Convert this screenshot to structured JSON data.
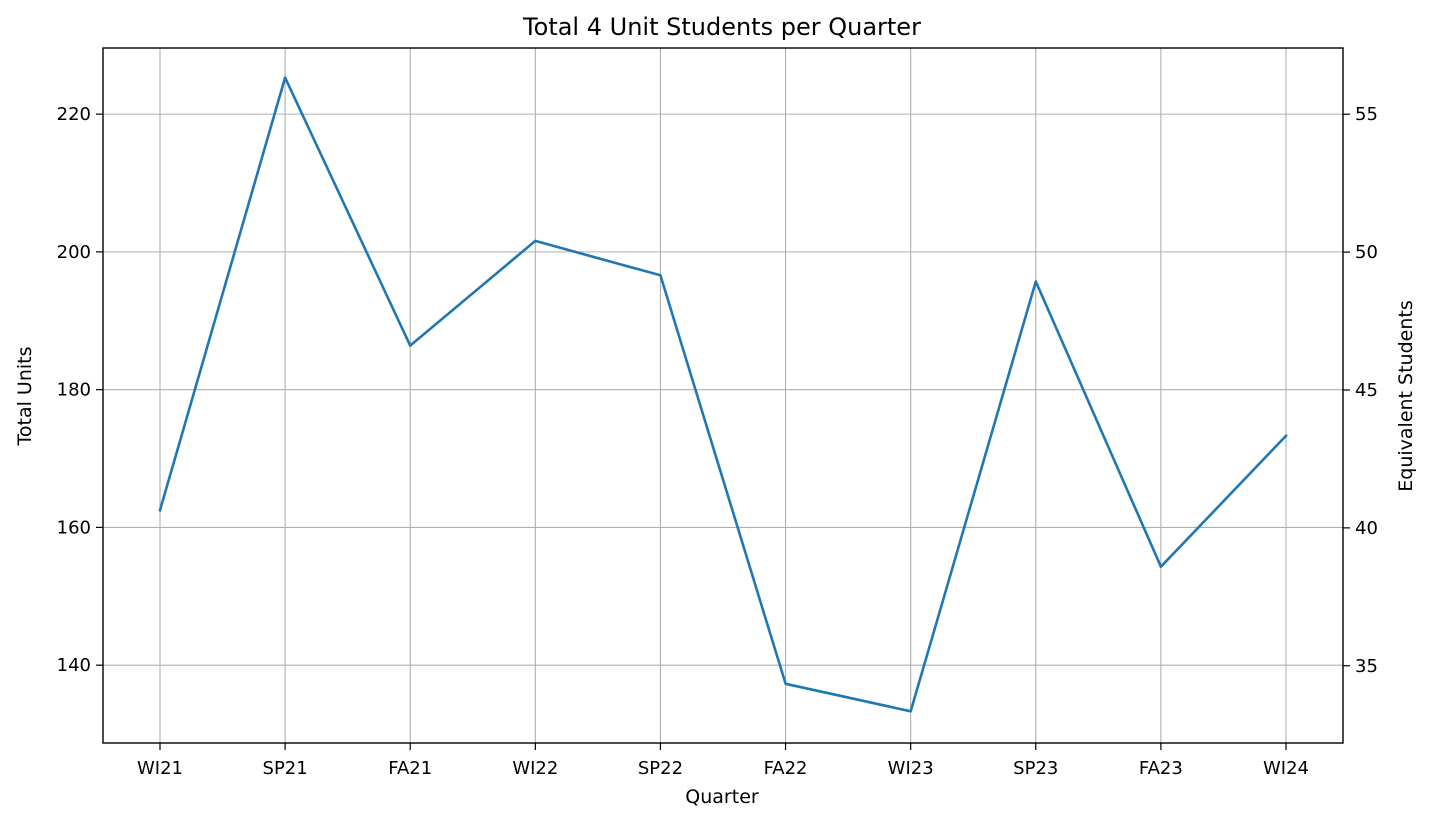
{
  "chart_data": {
    "type": "line",
    "title": "Total 4 Unit Students per Quarter",
    "xlabel": "Quarter",
    "ylabel": "Total Units",
    "y2label": "Equivalent Students",
    "categories": [
      "WI21",
      "SP21",
      "FA21",
      "WI22",
      "SP22",
      "FA22",
      "WI23",
      "SP23",
      "FA23",
      "WI24"
    ],
    "series": [
      {
        "values": [
          162.5,
          225.3,
          186.4,
          201.6,
          196.6,
          137.3,
          133.3,
          195.7,
          154.3,
          173.3
        ],
        "color": "#1f77b4"
      }
    ],
    "ylim": [
      128.7,
      229.6
    ],
    "y2lim": [
      32.2,
      57.4
    ],
    "yticks": [
      140,
      160,
      180,
      200,
      220
    ],
    "y2ticks": [
      35,
      40,
      45,
      50,
      55
    ],
    "grid": true
  }
}
